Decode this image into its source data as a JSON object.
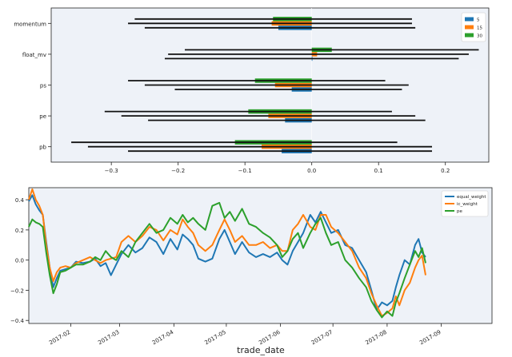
{
  "chart_data": [
    {
      "type": "bar",
      "orientation": "horizontal",
      "categories": [
        "momentum",
        "float_mv",
        "ps",
        "pe",
        "pb"
      ],
      "series": [
        {
          "name": "5",
          "color": "#1f77b4",
          "values": [
            -0.05,
            0.0,
            -0.03,
            -0.04,
            -0.045
          ],
          "err_low": [
            -0.25,
            -0.22,
            -0.205,
            -0.245,
            -0.275
          ],
          "err_high": [
            0.155,
            0.22,
            0.135,
            0.17,
            0.18
          ]
        },
        {
          "name": "15",
          "color": "#ff7f0e",
          "values": [
            -0.06,
            0.008,
            -0.055,
            -0.065,
            -0.075
          ],
          "err_low": [
            -0.275,
            -0.215,
            -0.25,
            -0.285,
            -0.335
          ],
          "err_high": [
            0.15,
            0.235,
            0.145,
            0.155,
            0.18
          ]
        },
        {
          "name": "30",
          "color": "#2ca02c",
          "values": [
            -0.058,
            0.03,
            -0.085,
            -0.095,
            -0.115
          ],
          "err_low": [
            -0.265,
            -0.19,
            -0.275,
            -0.31,
            -0.36
          ],
          "err_high": [
            0.15,
            0.25,
            0.11,
            0.12,
            0.128
          ]
        }
      ],
      "xlim": [
        -0.39,
        0.265
      ],
      "xticks": [
        -0.3,
        -0.2,
        -0.1,
        0.0,
        0.1,
        0.2
      ],
      "xtick_labels": [
        "−0.3",
        "−0.2",
        "−0.1",
        "0.0",
        "0.1",
        "0.2"
      ],
      "legend": "top-right",
      "grid": false
    },
    {
      "type": "line",
      "xlabel": "trade_date",
      "xlim": [
        "2017-01-08",
        "2017-09-30"
      ],
      "ylim": [
        -0.42,
        0.48
      ],
      "yticks": [
        -0.4,
        -0.2,
        0.0,
        0.2,
        0.4
      ],
      "ytick_labels": [
        "−0.4",
        "−0.2",
        "0.0",
        "0.2",
        "0.4"
      ],
      "xticks": [
        "2017-02-01",
        "2017-03-01",
        "2017-04-01",
        "2017-05-01",
        "2017-06-01",
        "2017-07-01",
        "2017-08-01",
        "2017-09-01"
      ],
      "xtick_labels": [
        "2017-02",
        "2017-03",
        "2017-04",
        "2017-05",
        "2017-06",
        "2017-07",
        "2017-08",
        "2017-09"
      ],
      "legend": "top-right",
      "grid": false,
      "series": [
        {
          "name": "equal_weight",
          "color": "#1f77b4",
          "points": [
            [
              "2017-01-08",
              0.39
            ],
            [
              "2017-01-10",
              0.43
            ],
            [
              "2017-01-12",
              0.37
            ],
            [
              "2017-01-14",
              0.33
            ],
            [
              "2017-01-16",
              0.3
            ],
            [
              "2017-01-18",
              0.12
            ],
            [
              "2017-01-20",
              -0.05
            ],
            [
              "2017-01-22",
              -0.18
            ],
            [
              "2017-01-24",
              -0.12
            ],
            [
              "2017-01-26",
              -0.07
            ],
            [
              "2017-01-29",
              -0.06
            ],
            [
              "2017-02-01",
              -0.05
            ],
            [
              "2017-02-04",
              -0.01
            ],
            [
              "2017-02-08",
              -0.02
            ],
            [
              "2017-02-12",
              -0.01
            ],
            [
              "2017-02-15",
              0.01
            ],
            [
              "2017-02-18",
              -0.04
            ],
            [
              "2017-02-21",
              -0.02
            ],
            [
              "2017-02-24",
              -0.1
            ],
            [
              "2017-02-27",
              -0.03
            ],
            [
              "2017-03-02",
              0.04
            ],
            [
              "2017-03-06",
              0.1
            ],
            [
              "2017-03-10",
              0.05
            ],
            [
              "2017-03-14",
              0.08
            ],
            [
              "2017-03-18",
              0.15
            ],
            [
              "2017-03-22",
              0.12
            ],
            [
              "2017-03-26",
              0.04
            ],
            [
              "2017-03-30",
              0.14
            ],
            [
              "2017-04-03",
              0.07
            ],
            [
              "2017-04-06",
              0.17
            ],
            [
              "2017-04-09",
              0.14
            ],
            [
              "2017-04-12",
              0.1
            ],
            [
              "2017-04-15",
              0.01
            ],
            [
              "2017-04-19",
              -0.01
            ],
            [
              "2017-04-23",
              0.01
            ],
            [
              "2017-04-27",
              0.14
            ],
            [
              "2017-04-30",
              0.2
            ],
            [
              "2017-05-03",
              0.12
            ],
            [
              "2017-05-06",
              0.04
            ],
            [
              "2017-05-10",
              0.12
            ],
            [
              "2017-05-14",
              0.05
            ],
            [
              "2017-05-18",
              0.02
            ],
            [
              "2017-05-22",
              0.04
            ],
            [
              "2017-05-26",
              0.02
            ],
            [
              "2017-05-30",
              0.05
            ],
            [
              "2017-06-02",
              0.0
            ],
            [
              "2017-06-05",
              -0.03
            ],
            [
              "2017-06-08",
              0.06
            ],
            [
              "2017-06-11",
              0.12
            ],
            [
              "2017-06-14",
              0.18
            ],
            [
              "2017-06-18",
              0.3
            ],
            [
              "2017-06-21",
              0.25
            ],
            [
              "2017-06-24",
              0.32
            ],
            [
              "2017-06-27",
              0.25
            ],
            [
              "2017-06-30",
              0.18
            ],
            [
              "2017-07-04",
              0.2
            ],
            [
              "2017-07-08",
              0.1
            ],
            [
              "2017-07-12",
              0.08
            ],
            [
              "2017-07-16",
              0.0
            ],
            [
              "2017-07-20",
              -0.08
            ],
            [
              "2017-07-23",
              -0.2
            ],
            [
              "2017-07-26",
              -0.33
            ],
            [
              "2017-07-29",
              -0.28
            ],
            [
              "2017-08-01",
              -0.3
            ],
            [
              "2017-08-04",
              -0.27
            ],
            [
              "2017-08-06",
              -0.18
            ],
            [
              "2017-08-08",
              -0.1
            ],
            [
              "2017-08-11",
              0.0
            ],
            [
              "2017-08-14",
              -0.03
            ],
            [
              "2017-08-17",
              0.1
            ],
            [
              "2017-08-19",
              0.14
            ],
            [
              "2017-08-21",
              0.05
            ],
            [
              "2017-08-23",
              0.02
            ]
          ]
        },
        {
          "name": "ic_weight",
          "color": "#ff7f0e",
          "points": [
            [
              "2017-01-08",
              0.4
            ],
            [
              "2017-01-10",
              0.47
            ],
            [
              "2017-01-12",
              0.4
            ],
            [
              "2017-01-14",
              0.36
            ],
            [
              "2017-01-16",
              0.3
            ],
            [
              "2017-01-18",
              0.1
            ],
            [
              "2017-01-20",
              -0.05
            ],
            [
              "2017-01-22",
              -0.14
            ],
            [
              "2017-01-24",
              -0.08
            ],
            [
              "2017-01-26",
              -0.05
            ],
            [
              "2017-01-29",
              -0.04
            ],
            [
              "2017-02-01",
              -0.05
            ],
            [
              "2017-02-04",
              -0.02
            ],
            [
              "2017-02-08",
              0.0
            ],
            [
              "2017-02-12",
              0.02
            ],
            [
              "2017-02-15",
              0.0
            ],
            [
              "2017-02-18",
              -0.02
            ],
            [
              "2017-02-21",
              0.0
            ],
            [
              "2017-02-24",
              0.01
            ],
            [
              "2017-02-27",
              0.02
            ],
            [
              "2017-03-02",
              0.12
            ],
            [
              "2017-03-06",
              0.16
            ],
            [
              "2017-03-10",
              0.12
            ],
            [
              "2017-03-14",
              0.16
            ],
            [
              "2017-03-18",
              0.22
            ],
            [
              "2017-03-22",
              0.2
            ],
            [
              "2017-03-26",
              0.13
            ],
            [
              "2017-03-30",
              0.2
            ],
            [
              "2017-04-03",
              0.17
            ],
            [
              "2017-04-06",
              0.27
            ],
            [
              "2017-04-09",
              0.22
            ],
            [
              "2017-04-12",
              0.18
            ],
            [
              "2017-04-15",
              0.1
            ],
            [
              "2017-04-19",
              0.06
            ],
            [
              "2017-04-23",
              0.1
            ],
            [
              "2017-04-27",
              0.2
            ],
            [
              "2017-04-30",
              0.27
            ],
            [
              "2017-05-03",
              0.2
            ],
            [
              "2017-05-06",
              0.12
            ],
            [
              "2017-05-10",
              0.16
            ],
            [
              "2017-05-14",
              0.1
            ],
            [
              "2017-05-18",
              0.1
            ],
            [
              "2017-05-22",
              0.12
            ],
            [
              "2017-05-26",
              0.08
            ],
            [
              "2017-05-30",
              0.1
            ],
            [
              "2017-06-02",
              0.06
            ],
            [
              "2017-06-05",
              0.06
            ],
            [
              "2017-06-08",
              0.2
            ],
            [
              "2017-06-11",
              0.24
            ],
            [
              "2017-06-14",
              0.3
            ],
            [
              "2017-06-18",
              0.22
            ],
            [
              "2017-06-21",
              0.2
            ],
            [
              "2017-06-24",
              0.3
            ],
            [
              "2017-06-27",
              0.3
            ],
            [
              "2017-06-30",
              0.22
            ],
            [
              "2017-07-04",
              0.18
            ],
            [
              "2017-07-08",
              0.12
            ],
            [
              "2017-07-12",
              0.06
            ],
            [
              "2017-07-16",
              -0.05
            ],
            [
              "2017-07-20",
              -0.12
            ],
            [
              "2017-07-23",
              -0.22
            ],
            [
              "2017-07-26",
              -0.3
            ],
            [
              "2017-07-29",
              -0.37
            ],
            [
              "2017-08-01",
              -0.35
            ],
            [
              "2017-08-04",
              -0.32
            ],
            [
              "2017-08-06",
              -0.24
            ],
            [
              "2017-08-08",
              -0.3
            ],
            [
              "2017-08-11",
              -0.2
            ],
            [
              "2017-08-14",
              -0.15
            ],
            [
              "2017-08-17",
              -0.05
            ],
            [
              "2017-08-19",
              0.0
            ],
            [
              "2017-08-21",
              0.03
            ],
            [
              "2017-08-23",
              -0.1
            ]
          ]
        },
        {
          "name": "pe",
          "color": "#2ca02c",
          "points": [
            [
              "2017-01-08",
              0.22
            ],
            [
              "2017-01-10",
              0.27
            ],
            [
              "2017-01-12",
              0.25
            ],
            [
              "2017-01-14",
              0.24
            ],
            [
              "2017-01-16",
              0.22
            ],
            [
              "2017-01-18",
              0.05
            ],
            [
              "2017-01-20",
              -0.1
            ],
            [
              "2017-01-22",
              -0.22
            ],
            [
              "2017-01-24",
              -0.16
            ],
            [
              "2017-01-26",
              -0.08
            ],
            [
              "2017-01-29",
              -0.07
            ],
            [
              "2017-02-01",
              -0.05
            ],
            [
              "2017-02-04",
              -0.03
            ],
            [
              "2017-02-08",
              -0.03
            ],
            [
              "2017-02-12",
              -0.01
            ],
            [
              "2017-02-15",
              0.02
            ],
            [
              "2017-02-18",
              0.0
            ],
            [
              "2017-02-21",
              0.06
            ],
            [
              "2017-02-24",
              0.02
            ],
            [
              "2017-02-27",
              0.0
            ],
            [
              "2017-03-02",
              0.06
            ],
            [
              "2017-03-06",
              0.02
            ],
            [
              "2017-03-10",
              0.12
            ],
            [
              "2017-03-14",
              0.18
            ],
            [
              "2017-03-18",
              0.24
            ],
            [
              "2017-03-22",
              0.18
            ],
            [
              "2017-03-26",
              0.2
            ],
            [
              "2017-03-30",
              0.28
            ],
            [
              "2017-04-03",
              0.24
            ],
            [
              "2017-04-06",
              0.3
            ],
            [
              "2017-04-09",
              0.25
            ],
            [
              "2017-04-12",
              0.28
            ],
            [
              "2017-04-15",
              0.24
            ],
            [
              "2017-04-19",
              0.2
            ],
            [
              "2017-04-23",
              0.36
            ],
            [
              "2017-04-27",
              0.38
            ],
            [
              "2017-04-30",
              0.28
            ],
            [
              "2017-05-03",
              0.32
            ],
            [
              "2017-05-06",
              0.26
            ],
            [
              "2017-05-10",
              0.34
            ],
            [
              "2017-05-14",
              0.24
            ],
            [
              "2017-05-18",
              0.22
            ],
            [
              "2017-05-22",
              0.18
            ],
            [
              "2017-05-26",
              0.15
            ],
            [
              "2017-05-30",
              0.1
            ],
            [
              "2017-06-02",
              0.02
            ],
            [
              "2017-06-05",
              0.06
            ],
            [
              "2017-06-08",
              0.14
            ],
            [
              "2017-06-11",
              0.18
            ],
            [
              "2017-06-14",
              0.08
            ],
            [
              "2017-06-18",
              0.18
            ],
            [
              "2017-06-21",
              0.24
            ],
            [
              "2017-06-24",
              0.28
            ],
            [
              "2017-06-27",
              0.18
            ],
            [
              "2017-06-30",
              0.1
            ],
            [
              "2017-07-04",
              0.12
            ],
            [
              "2017-07-08",
              0.0
            ],
            [
              "2017-07-12",
              -0.05
            ],
            [
              "2017-07-16",
              -0.12
            ],
            [
              "2017-07-20",
              -0.18
            ],
            [
              "2017-07-23",
              -0.27
            ],
            [
              "2017-07-26",
              -0.33
            ],
            [
              "2017-07-29",
              -0.38
            ],
            [
              "2017-08-01",
              -0.34
            ],
            [
              "2017-08-04",
              -0.37
            ],
            [
              "2017-08-06",
              -0.28
            ],
            [
              "2017-08-08",
              -0.22
            ],
            [
              "2017-08-11",
              -0.12
            ],
            [
              "2017-08-14",
              -0.03
            ],
            [
              "2017-08-17",
              0.06
            ],
            [
              "2017-08-19",
              0.02
            ],
            [
              "2017-08-21",
              0.08
            ],
            [
              "2017-08-23",
              -0.02
            ]
          ]
        }
      ]
    }
  ]
}
